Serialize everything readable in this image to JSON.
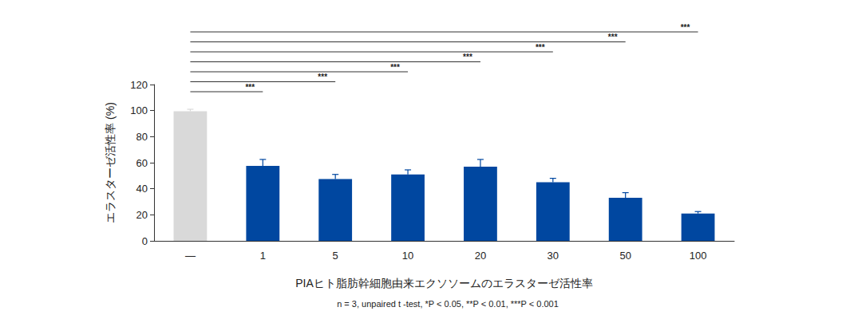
{
  "chart_data": {
    "type": "bar",
    "ylabel": "エラスターゼ活性率 (%)",
    "xlabel": "PIAヒト脂肪幹細胞由来エクソソームのエラスターゼ活性率",
    "note": "n = 3, unpaired t -test, *P < 0.05, **P < 0.01, ***P < 0.001",
    "categories": [
      "—",
      "1",
      "5",
      "10",
      "20",
      "30",
      "50",
      "100"
    ],
    "values": [
      99.5,
      57.5,
      47.5,
      51,
      57,
      45,
      33,
      21
    ],
    "errors": [
      1.5,
      5,
      3.5,
      3.5,
      5.5,
      3,
      4,
      1.5
    ],
    "colors": [
      "#d9d9d9",
      "#0047a0",
      "#0047a0",
      "#0047a0",
      "#0047a0",
      "#0047a0",
      "#0047a0",
      "#0047a0"
    ],
    "ylim": [
      0,
      120
    ],
    "yticks": [
      0,
      20,
      40,
      60,
      80,
      100,
      120
    ],
    "grid": false,
    "significance": [
      {
        "from": "—",
        "to": "1",
        "label": "***"
      },
      {
        "from": "—",
        "to": "5",
        "label": "***"
      },
      {
        "from": "—",
        "to": "10",
        "label": "***"
      },
      {
        "from": "—",
        "to": "20",
        "label": "***"
      },
      {
        "from": "—",
        "to": "30",
        "label": "***"
      },
      {
        "from": "—",
        "to": "50",
        "label": "***"
      },
      {
        "from": "—",
        "to": "100",
        "label": "***"
      }
    ]
  }
}
